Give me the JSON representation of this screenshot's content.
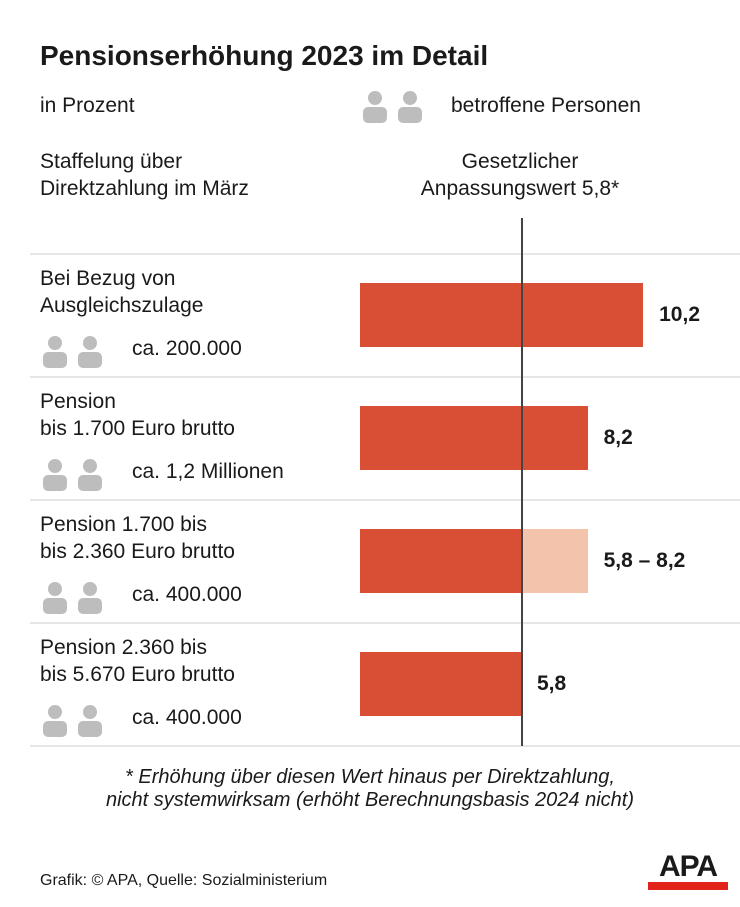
{
  "title": "Pensionserhöhung 2023 im Detail",
  "subtitle": "in Prozent",
  "legend": "betroffene Personen",
  "col_left": [
    "Staffelung über",
    "Direktzahlung im März"
  ],
  "col_right": [
    "Gesetzlicher",
    "Anpassungswert 5,8*"
  ],
  "footnote": [
    "* Erhöhung über diesen Wert hinaus per Direktzahlung,",
    "nicht systemwirksam (erhöht Berechnungsbasis 2024 nicht)"
  ],
  "source": "Grafik: © APA, Quelle: Sozialministerium",
  "logo": "APA",
  "colors": {
    "bar": "#d94f36",
    "bar_light": "#f4c3ab",
    "icon": "#bdbdbd",
    "logo_red": "#e2231a"
  },
  "chart_data": {
    "type": "bar",
    "orientation": "horizontal",
    "reference_line": 5.8,
    "categories": [
      {
        "lines": [
          "Bei Bezug von",
          "Ausgleichszulage"
        ],
        "persons": "ca. 200.000"
      },
      {
        "lines": [
          "Pension",
          "bis 1.700 Euro brutto"
        ],
        "persons": "ca. 1,2 Millionen"
      },
      {
        "lines": [
          "Pension 1.700 bis",
          "bis 2.360 Euro brutto"
        ],
        "persons": "ca. 400.000"
      },
      {
        "lines": [
          "Pension 2.360 bis",
          "bis 5.670 Euro brutto"
        ],
        "persons": "ca. 400.000"
      }
    ],
    "values": [
      [
        0,
        10.2
      ],
      [
        0,
        8.2
      ],
      [
        0,
        5.8,
        8.2
      ],
      [
        0,
        5.8
      ]
    ],
    "labels": [
      "10,2",
      "8,2",
      "5,8 – 8,2",
      "5,8"
    ]
  }
}
